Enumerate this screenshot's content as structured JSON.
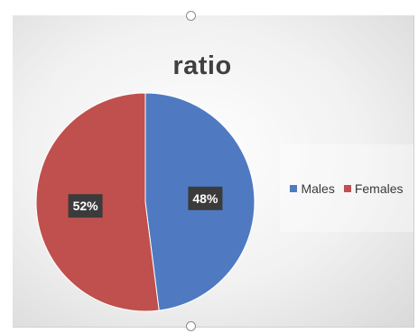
{
  "chart_data": {
    "type": "pie",
    "title": "ratio",
    "slices": [
      {
        "label": "Males",
        "value": 48,
        "display": "48%",
        "color": "#4f7ac1"
      },
      {
        "label": "Females",
        "value": 52,
        "display": "52%",
        "color": "#c0504d"
      }
    ],
    "legend_position": "right",
    "data_label_bg": "#3b3b3b"
  }
}
